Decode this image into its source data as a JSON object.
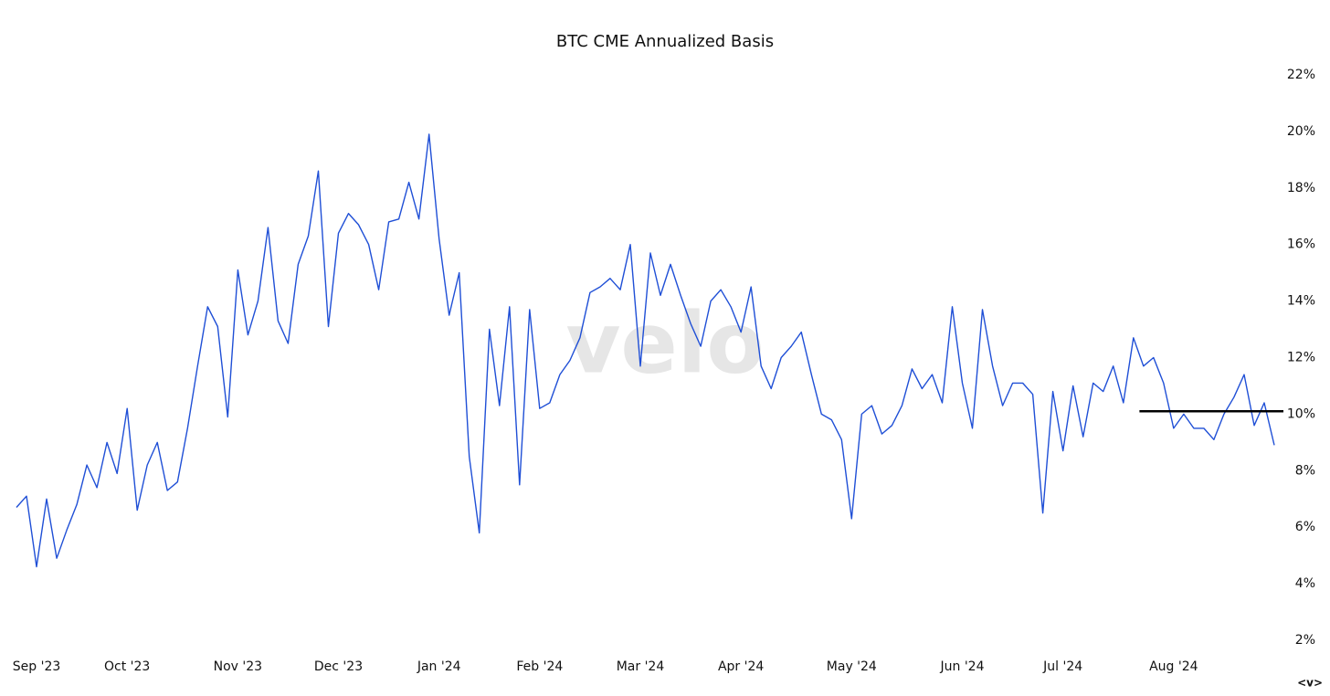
{
  "chart_data": {
    "type": "line",
    "title": "BTC CME Annualized Basis",
    "watermark": "velo",
    "controls": "<v>",
    "categories": [
      null,
      null,
      "Sep '23",
      null,
      null,
      null,
      null,
      null,
      null,
      null,
      null,
      "Oct '23",
      null,
      null,
      null,
      null,
      null,
      null,
      null,
      null,
      null,
      null,
      "Nov '23",
      null,
      null,
      null,
      null,
      null,
      null,
      null,
      null,
      null,
      "Dec '23",
      null,
      null,
      null,
      null,
      null,
      null,
      null,
      null,
      null,
      "Jan '24",
      null,
      null,
      null,
      null,
      null,
      null,
      null,
      null,
      null,
      "Feb '24",
      null,
      null,
      null,
      null,
      null,
      null,
      null,
      null,
      null,
      "Mar '24",
      null,
      null,
      null,
      null,
      null,
      null,
      null,
      null,
      null,
      "Apr '24",
      null,
      null,
      null,
      null,
      null,
      null,
      null,
      null,
      null,
      null,
      "May '24",
      null,
      null,
      null,
      null,
      null,
      null,
      null,
      null,
      null,
      null,
      "Jun '24",
      null,
      null,
      null,
      null,
      null,
      null,
      null,
      null,
      null,
      "Jul '24",
      null,
      null,
      null,
      null,
      null,
      null,
      null,
      null,
      null,
      null,
      "Aug '24",
      null,
      null,
      null,
      null,
      null,
      null,
      null,
      null,
      null,
      null
    ],
    "series": [
      {
        "color": "#1f4fd6",
        "values": [
          6.7,
          7.1,
          4.6,
          7.0,
          4.9,
          5.9,
          6.8,
          8.2,
          7.4,
          9.0,
          7.9,
          10.2,
          6.6,
          8.2,
          9.0,
          7.3,
          7.6,
          9.5,
          11.7,
          13.8,
          13.1,
          9.9,
          15.1,
          12.8,
          14.0,
          16.6,
          13.3,
          12.5,
          15.3,
          16.3,
          18.6,
          13.1,
          16.4,
          17.1,
          16.7,
          16.0,
          14.4,
          16.8,
          16.9,
          18.2,
          16.9,
          19.9,
          16.2,
          13.5,
          15.0,
          8.5,
          5.8,
          13.0,
          10.3,
          13.8,
          7.5,
          13.7,
          10.2,
          10.4,
          11.4,
          11.9,
          12.7,
          14.3,
          14.5,
          14.8,
          14.4,
          16.0,
          11.7,
          15.7,
          14.2,
          15.3,
          14.2,
          13.2,
          12.4,
          14.0,
          14.4,
          13.8,
          12.9,
          14.5,
          11.7,
          10.9,
          12.0,
          12.4,
          12.9,
          11.4,
          10.0,
          9.8,
          9.1,
          6.3,
          10.0,
          10.3,
          9.3,
          9.6,
          10.3,
          11.6,
          10.9,
          11.4,
          10.4,
          13.8,
          11.1,
          9.5,
          13.7,
          11.7,
          10.3,
          11.1,
          11.1,
          10.7,
          6.5,
          10.8,
          8.7,
          11.0,
          9.2,
          11.1,
          10.8,
          11.7,
          10.4,
          12.7,
          11.7,
          12.0,
          11.1,
          9.5,
          10.0,
          9.5,
          9.5,
          9.1,
          10.0,
          10.6,
          11.4,
          9.6,
          10.4,
          8.9
        ]
      }
    ],
    "hline": {
      "value": 10.1,
      "color": "#000000"
    },
    "ylim": [
      2,
      22
    ],
    "yticks": [
      {
        "value": 2,
        "label": "2%"
      },
      {
        "value": 4,
        "label": "4%"
      },
      {
        "value": 6,
        "label": "6%"
      },
      {
        "value": 8,
        "label": "8%"
      },
      {
        "value": 10,
        "label": "10%"
      },
      {
        "value": 12,
        "label": "12%"
      },
      {
        "value": 14,
        "label": "14%"
      },
      {
        "value": 16,
        "label": "16%"
      },
      {
        "value": 18,
        "label": "18%"
      },
      {
        "value": 20,
        "label": "20%"
      },
      {
        "value": 22,
        "label": "22%"
      }
    ],
    "grid": false
  }
}
